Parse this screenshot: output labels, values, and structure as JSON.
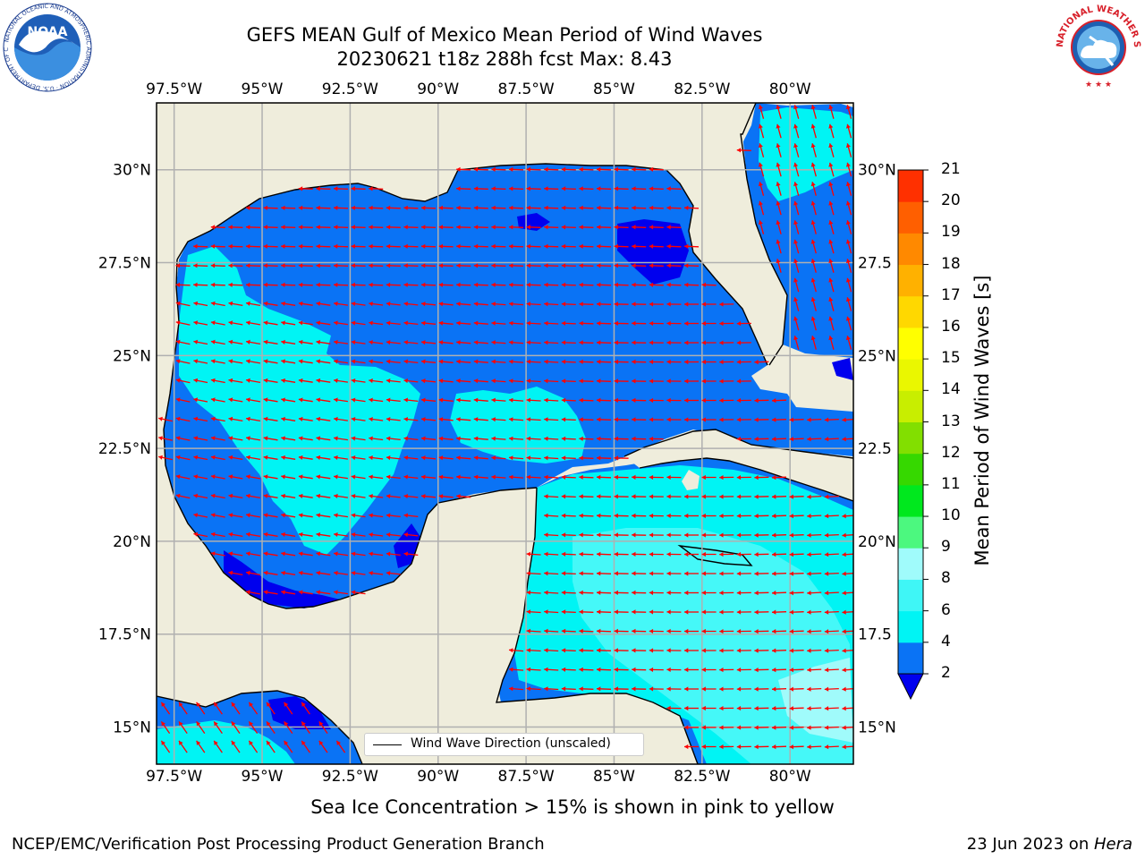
{
  "title": {
    "line1": "GEFS MEAN Gulf of Mexico Mean Period of Wind Waves",
    "line2": "20230621 t18z 288h fcst   Max: 8.43"
  },
  "map": {
    "lon_labels": [
      "97.5°W",
      "95°W",
      "92.5°W",
      "90°W",
      "87.5°W",
      "85°W",
      "82.5°W",
      "80°W"
    ],
    "lon_values": [
      -97.5,
      -95,
      -92.5,
      -90,
      -87.5,
      -85,
      -82.5,
      -80
    ],
    "lat_labels_left": [
      "30°N",
      "27.5°N",
      "25°N",
      "22.5°N",
      "20°N",
      "17.5°N",
      "15°N"
    ],
    "lat_labels_right": [
      "30°N",
      "27.5",
      "25°N",
      "22.5",
      "20°N",
      "17.5",
      "15°N"
    ],
    "lat_values": [
      30,
      27.5,
      25,
      22.5,
      20,
      17.5,
      15
    ],
    "extent": {
      "lon_min": -98,
      "lon_max": -78.2,
      "lat_min": 14,
      "lat_max": 31.8
    },
    "legend_label": "Wind Wave Direction (unscaled)",
    "max_value": 8.43,
    "colors": {
      "land": "#efeddc",
      "ocean_2_4": "#0a73f5",
      "ocean_4_6": "#00f4f4",
      "ocean_6_8": "#45f8f8",
      "dark_below_2": "#0000ee",
      "arrows": "#ff0000",
      "grid": "#b0b0b0"
    }
  },
  "colorbar": {
    "title": "Mean Period of Wind Waves [s]",
    "levels": [
      "2",
      "4",
      "6",
      "8",
      "9",
      "10",
      "11",
      "12",
      "13",
      "14",
      "15",
      "16",
      "17",
      "18",
      "19",
      "20",
      "21"
    ],
    "colors": [
      "#0a73f5",
      "#00f4f4",
      "#3ff6f6",
      "#a0fbfb",
      "#4cf87f",
      "#00e81e",
      "#36d800",
      "#82df00",
      "#c8ee00",
      "#eaf700",
      "#ffff00",
      "#ffd800",
      "#ffb100",
      "#ff8900",
      "#ff5f00",
      "#ff3000",
      "#ff0000"
    ],
    "under_color": "#0000ee"
  },
  "caption": "Sea Ice Concentration > 15% is shown in pink to yellow",
  "footer": {
    "left": "NCEP/EMC/Verification Post Processing Product Generation Branch",
    "right_prefix": "23 Jun 2023 on ",
    "right_host": "Hera"
  },
  "logos": {
    "noaa_text": "NOAA",
    "noaa_ring": "NATIONAL OCEANIC AND ATMOSPHERIC ADMINISTRATION · U.S. DEPARTMENT OF COMMERCE",
    "nws_ring": "NATIONAL WEATHER SERVICE"
  }
}
